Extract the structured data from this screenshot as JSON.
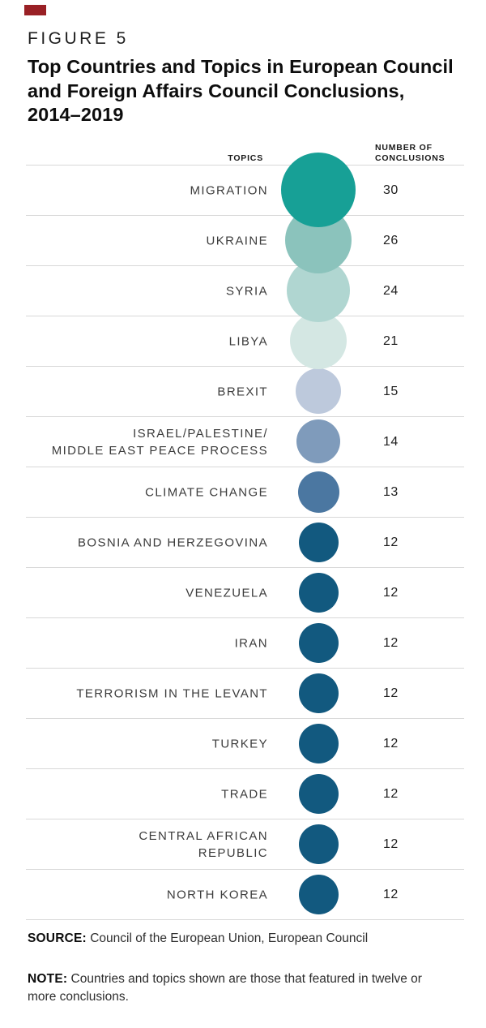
{
  "accent_color": "#992025",
  "figure": {
    "label": "FIGURE 5",
    "title_lines": [
      "Top Countries and Topics in European Council",
      "and Foreign Affairs Council Conclusions,",
      "2014–2019"
    ]
  },
  "columns": {
    "topics": "TOPICS",
    "conclusions": "NUMBER OF\nCONCLUSIONS"
  },
  "chart_data": {
    "type": "bubble",
    "title": "Top Countries and Topics in European Council and Foreign Affairs Council Conclusions, 2014–2019",
    "value_label": "NUMBER OF CONCLUSIONS",
    "categories": [
      "MIGRATION",
      "UKRAINE",
      "SYRIA",
      "LIBYA",
      "BREXIT",
      "ISRAEL/PALESTINE/ MIDDLE EAST PEACE PROCESS",
      "CLIMATE CHANGE",
      "BOSNIA AND HERZEGOVINA",
      "VENEZUELA",
      "IRAN",
      "TERRORISM IN THE LEVANT",
      "TURKEY",
      "TRADE",
      "CENTRAL AFRICAN REPUBLIC",
      "NORTH KOREA"
    ],
    "values": [
      30,
      26,
      24,
      21,
      15,
      14,
      13,
      12,
      12,
      12,
      12,
      12,
      12,
      12,
      12
    ],
    "colors": [
      "#17A096",
      "#8BC3BC",
      "#B0D6D1",
      "#D4E7E3",
      "#BDC9DC",
      "#7F9BBB",
      "#4B77A1",
      "#12597F",
      "#12597F",
      "#12597F",
      "#12597F",
      "#12597F",
      "#12597F",
      "#12597F",
      "#12597F"
    ]
  },
  "rows": [
    {
      "label_lines": [
        "MIGRATION"
      ],
      "value": "30",
      "color": "#17A096"
    },
    {
      "label_lines": [
        "UKRAINE"
      ],
      "value": "26",
      "color": "#8BC3BC"
    },
    {
      "label_lines": [
        "SYRIA"
      ],
      "value": "24",
      "color": "#B0D6D1"
    },
    {
      "label_lines": [
        "LIBYA"
      ],
      "value": "21",
      "color": "#D4E7E3"
    },
    {
      "label_lines": [
        "BREXIT"
      ],
      "value": "15",
      "color": "#BDC9DC"
    },
    {
      "label_lines": [
        "ISRAEL/PALESTINE/",
        "MIDDLE EAST PEACE PROCESS"
      ],
      "value": "14",
      "color": "#7F9BBB"
    },
    {
      "label_lines": [
        "CLIMATE CHANGE"
      ],
      "value": "13",
      "color": "#4B77A1"
    },
    {
      "label_lines": [
        "BOSNIA AND HERZEGOVINA"
      ],
      "value": "12",
      "color": "#12597F"
    },
    {
      "label_lines": [
        "VENEZUELA"
      ],
      "value": "12",
      "color": "#12597F"
    },
    {
      "label_lines": [
        "IRAN"
      ],
      "value": "12",
      "color": "#12597F"
    },
    {
      "label_lines": [
        "TERRORISM IN THE LEVANT"
      ],
      "value": "12",
      "color": "#12597F"
    },
    {
      "label_lines": [
        "TURKEY"
      ],
      "value": "12",
      "color": "#12597F"
    },
    {
      "label_lines": [
        "TRADE"
      ],
      "value": "12",
      "color": "#12597F"
    },
    {
      "label_lines": [
        "CENTRAL AFRICAN",
        "REPUBLIC"
      ],
      "value": "12",
      "color": "#12597F"
    },
    {
      "label_lines": [
        "NORTH KOREA"
      ],
      "value": "12",
      "color": "#12597F"
    }
  ],
  "source": {
    "label": "SOURCE:",
    "text": " Council of the European Union, European Council"
  },
  "note": {
    "label": "NOTE:",
    "text": " Countries and topics shown are those that featured in twelve or more conclusions."
  }
}
